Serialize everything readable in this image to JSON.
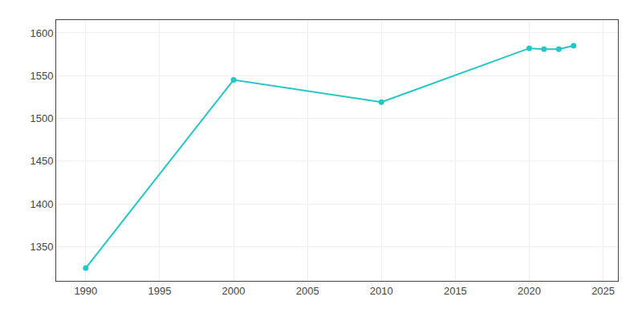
{
  "chart_data": {
    "type": "line",
    "x": [
      1990,
      2000,
      2010,
      2020,
      2021,
      2022,
      2023
    ],
    "values": [
      1325,
      1545,
      1519,
      1582,
      1581,
      1581,
      1585
    ],
    "color": "#26c6c6",
    "marker": "circle",
    "xlim": [
      1988,
      2026
    ],
    "ylim": [
      1310,
      1615
    ],
    "xticks": [
      1990,
      1995,
      2000,
      2005,
      2010,
      2015,
      2020,
      2025
    ],
    "yticks": [
      1350,
      1400,
      1450,
      1500,
      1550,
      1600
    ],
    "grid": true
  }
}
